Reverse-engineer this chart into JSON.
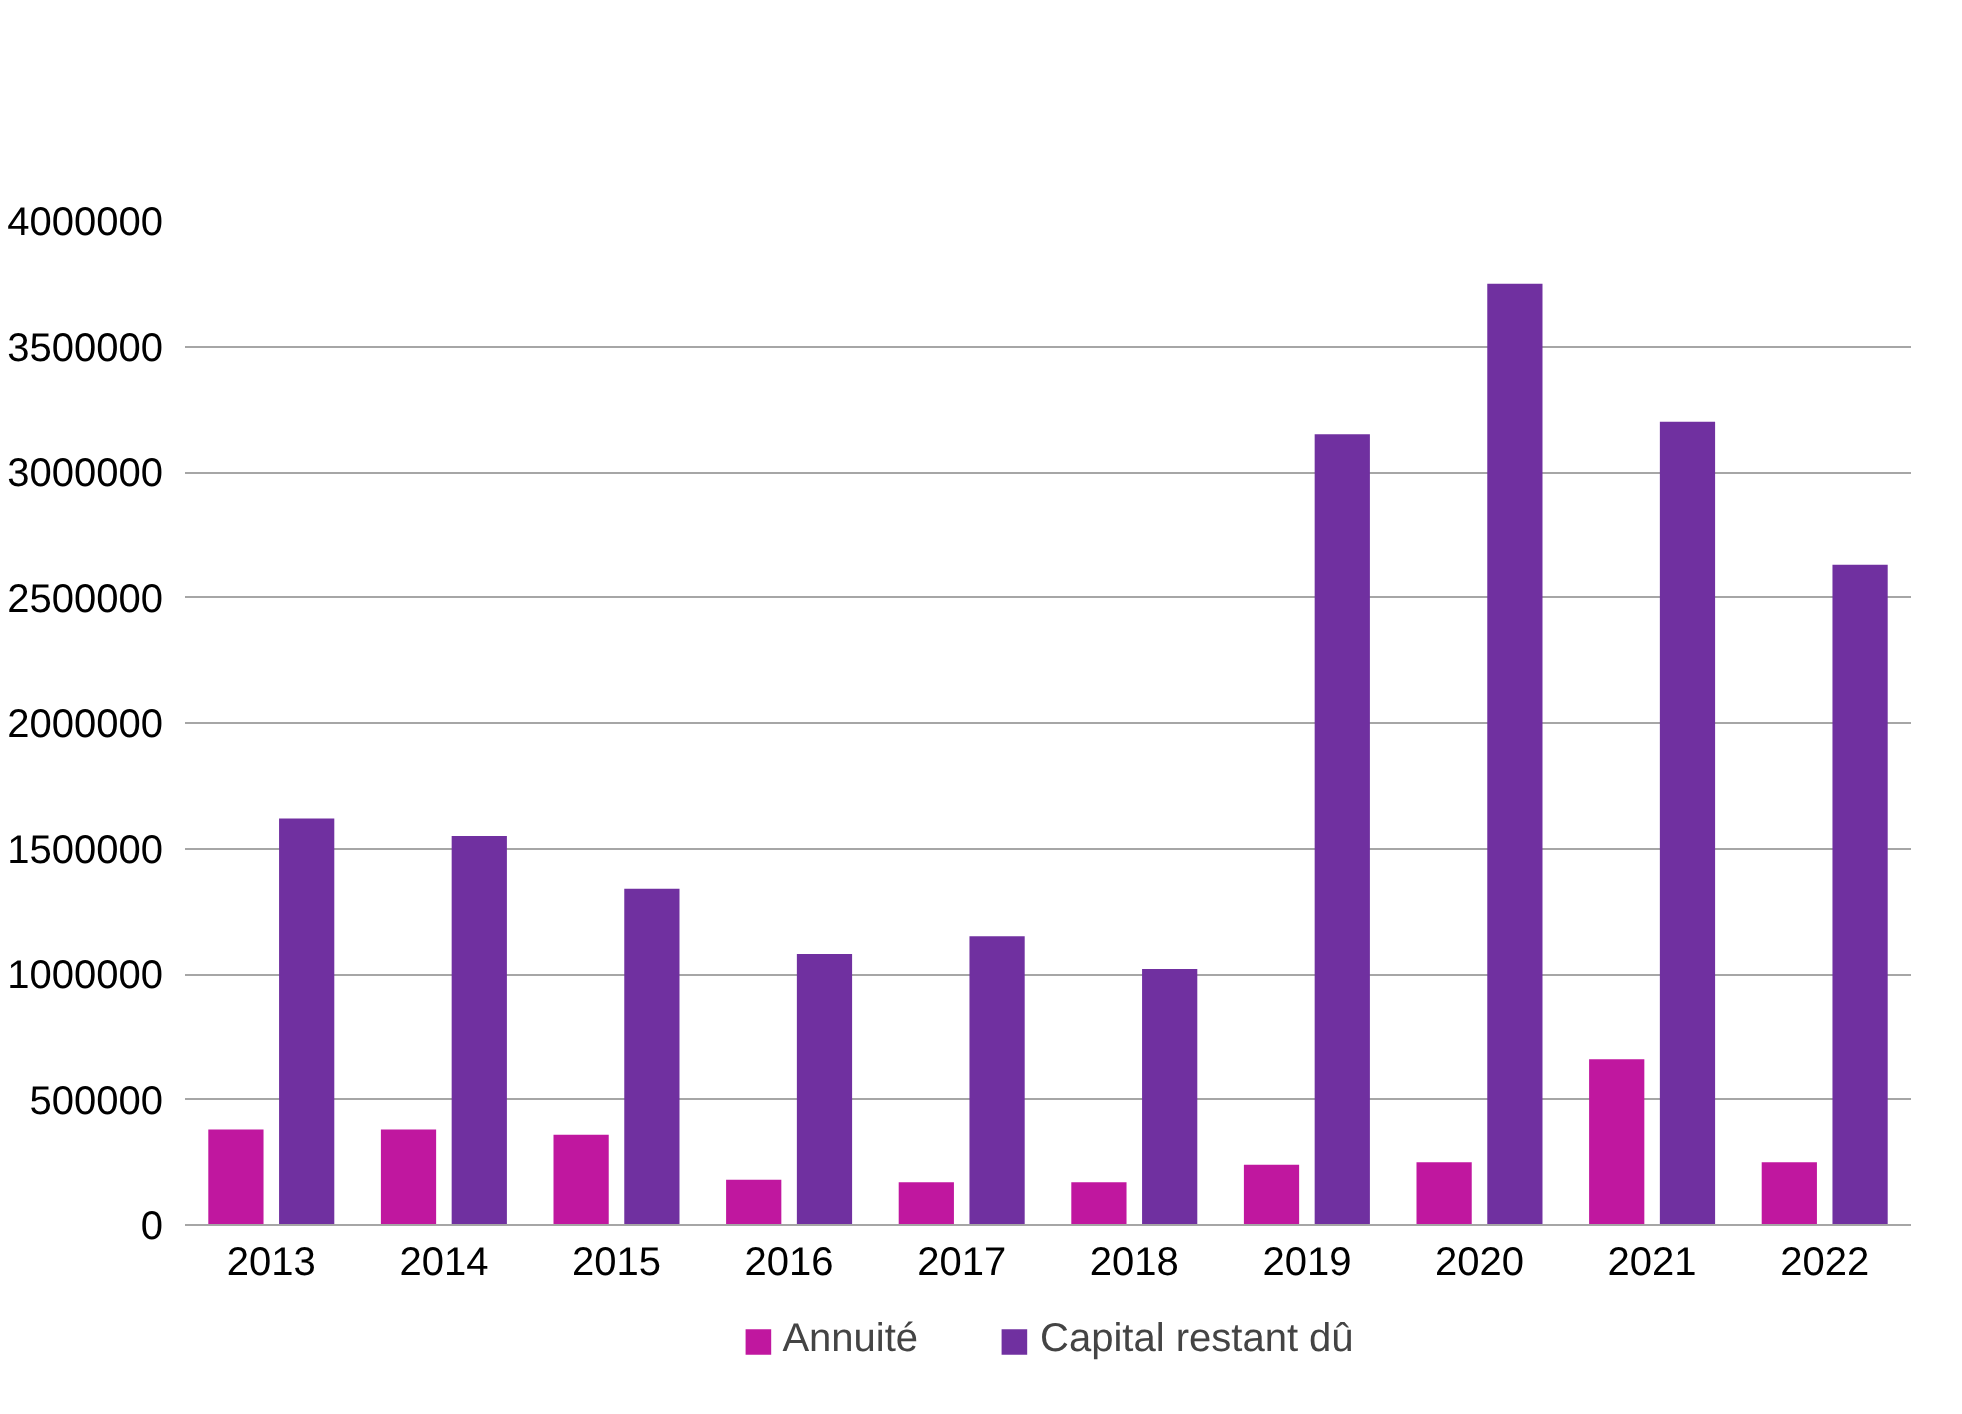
{
  "chart_data": {
    "type": "bar",
    "categories": [
      "2013",
      "2014",
      "2015",
      "2016",
      "2017",
      "2018",
      "2019",
      "2020",
      "2021",
      "2022"
    ],
    "series": [
      {
        "name": "Annuité",
        "color": "#c0179f",
        "values": [
          380000,
          380000,
          360000,
          180000,
          170000,
          170000,
          240000,
          250000,
          660000,
          250000
        ]
      },
      {
        "name": "Capital restant dû",
        "color": "#7030a0",
        "values": [
          1620000,
          1550000,
          1340000,
          1080000,
          1150000,
          1020000,
          3150000,
          3750000,
          3200000,
          2630000
        ]
      }
    ],
    "ylim": [
      0,
      4000000
    ],
    "yticks": [
      0,
      500000,
      1000000,
      1500000,
      2000000,
      2500000,
      3000000,
      3500000,
      4000000
    ],
    "grid": "y",
    "legend": "bottom"
  }
}
